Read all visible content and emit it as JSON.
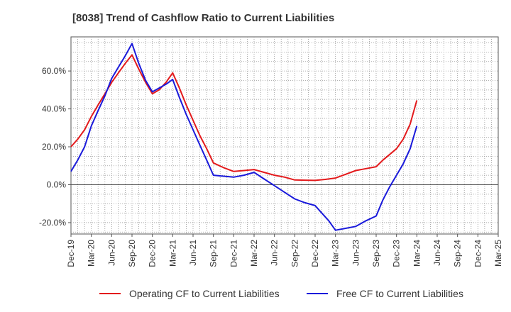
{
  "chart_data": {
    "type": "line",
    "title": "[8038]  Trend of Cashflow Ratio to Current Liabilities",
    "xlabel": "",
    "ylabel": "",
    "x_ticks": [
      "Dec-19",
      "Mar-20",
      "Jun-20",
      "Sep-20",
      "Dec-20",
      "Mar-21",
      "Jun-21",
      "Sep-21",
      "Dec-21",
      "Mar-22",
      "Jun-22",
      "Sep-22",
      "Dec-22",
      "Mar-23",
      "Jun-23",
      "Sep-23",
      "Dec-23",
      "Mar-24",
      "Jun-24",
      "Sep-24",
      "Dec-24",
      "Mar-25"
    ],
    "y_ticks": [
      -20,
      0,
      20,
      40,
      60
    ],
    "y_tick_labels": [
      "-20.0%",
      "0.0%",
      "20.0%",
      "40.0%",
      "60.0%"
    ],
    "ylim": [
      -26,
      78
    ],
    "grid": true,
    "legend_position": "bottom",
    "series": [
      {
        "name": "Operating CF to Current Liabilities",
        "color": "#e31a1c",
        "points": [
          [
            0,
            20
          ],
          [
            0.33,
            24
          ],
          [
            0.67,
            29
          ],
          [
            1,
            36
          ],
          [
            1.33,
            42
          ],
          [
            1.67,
            48
          ],
          [
            2,
            54
          ],
          [
            2.33,
            59
          ],
          [
            2.67,
            64
          ],
          [
            3,
            68.5
          ],
          [
            3.33,
            61
          ],
          [
            3.67,
            54
          ],
          [
            4,
            48
          ],
          [
            4.33,
            50
          ],
          [
            4.67,
            54
          ],
          [
            5,
            59
          ],
          [
            5.33,
            51
          ],
          [
            5.67,
            42
          ],
          [
            6,
            34
          ],
          [
            6.33,
            26
          ],
          [
            6.67,
            19
          ],
          [
            7,
            11.5
          ],
          [
            7.5,
            9
          ],
          [
            8,
            7
          ],
          [
            8.5,
            7.5
          ],
          [
            9,
            8
          ],
          [
            9.5,
            6.5
          ],
          [
            10,
            5
          ],
          [
            10.5,
            4
          ],
          [
            11,
            2.5
          ],
          [
            11.5,
            2.4
          ],
          [
            12,
            2.3
          ],
          [
            12.5,
            2.8
          ],
          [
            13,
            3.5
          ],
          [
            13.5,
            5.5
          ],
          [
            14,
            7.5
          ],
          [
            14.5,
            8.5
          ],
          [
            15,
            9.5
          ],
          [
            15.33,
            13
          ],
          [
            15.67,
            16
          ],
          [
            16,
            19
          ],
          [
            16.33,
            24
          ],
          [
            16.67,
            32
          ],
          [
            17,
            44.5
          ]
        ]
      },
      {
        "name": "Free CF to Current Liabilities",
        "color": "#1a1adb",
        "points": [
          [
            0,
            7
          ],
          [
            0.33,
            13
          ],
          [
            0.67,
            20
          ],
          [
            1,
            31
          ],
          [
            1.33,
            39
          ],
          [
            1.67,
            47
          ],
          [
            2,
            56
          ],
          [
            2.33,
            62
          ],
          [
            2.67,
            68
          ],
          [
            3,
            74.5
          ],
          [
            3.33,
            64
          ],
          [
            3.67,
            55
          ],
          [
            4,
            49
          ],
          [
            4.33,
            51
          ],
          [
            4.67,
            53
          ],
          [
            5,
            55.5
          ],
          [
            5.33,
            46
          ],
          [
            5.67,
            37
          ],
          [
            6,
            29
          ],
          [
            6.33,
            21
          ],
          [
            6.67,
            13
          ],
          [
            7,
            5
          ],
          [
            7.5,
            4.5
          ],
          [
            8,
            4
          ],
          [
            8.5,
            5
          ],
          [
            9,
            6.5
          ],
          [
            9.5,
            3
          ],
          [
            10,
            -0.5
          ],
          [
            10.5,
            -4
          ],
          [
            11,
            -7.5
          ],
          [
            11.5,
            -9.5
          ],
          [
            12,
            -11
          ],
          [
            12.33,
            -15
          ],
          [
            12.67,
            -19
          ],
          [
            13,
            -24
          ],
          [
            13.5,
            -23
          ],
          [
            14,
            -22
          ],
          [
            14.5,
            -19
          ],
          [
            15,
            -16.5
          ],
          [
            15.33,
            -8
          ],
          [
            15.67,
            -1
          ],
          [
            16,
            5
          ],
          [
            16.33,
            11
          ],
          [
            16.67,
            19
          ],
          [
            17,
            31
          ]
        ]
      }
    ]
  }
}
